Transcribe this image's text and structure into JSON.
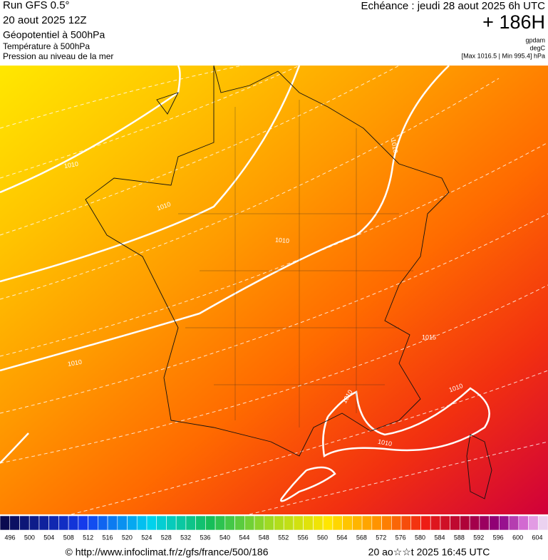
{
  "header": {
    "title": "Run GFS 0.5°",
    "run": "20 aout 2025 12Z",
    "params": [
      "Géopotentiel à 500hPa",
      "Température à 500hPa",
      "Pression au niveau de la mer"
    ],
    "echeance": "Echéance : jeudi 28 aout 2025 6h UTC",
    "lead": "+ 186H",
    "units": [
      "gpdam",
      "degC",
      "[Max 1016.5 | Min 995.4] hPa"
    ]
  },
  "map": {
    "contour_labels": [
      "1010",
      "1010",
      "1010",
      "1010",
      "1015",
      "1010",
      "1010",
      "1010",
      "1010"
    ]
  },
  "colorbar": {
    "labels": [
      496,
      500,
      504,
      508,
      512,
      516,
      520,
      524,
      528,
      532,
      536,
      540,
      544,
      548,
      552,
      556,
      560,
      564,
      568,
      572,
      576,
      580,
      584,
      588,
      592,
      596,
      600,
      604
    ]
  },
  "footer": {
    "url": "© http://www.infoclimat.fr/z/gfs/france/500/186",
    "date": "20 ao☆☆t 2025 16:45 UTC"
  }
}
